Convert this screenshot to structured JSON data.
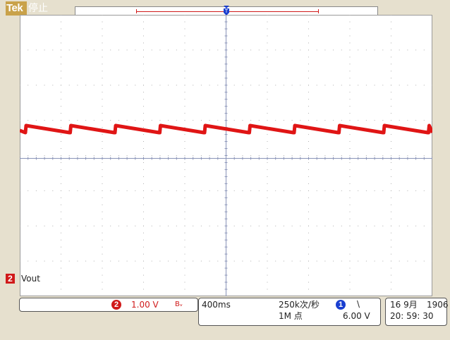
{
  "header": {
    "brand": "Tek",
    "acquisition_state": "停止"
  },
  "channel2": {
    "marker": "2",
    "label": "Vout",
    "scale": "1.00 V",
    "coupling_symbol": "Bᵥ",
    "color": "#d01a1a"
  },
  "timebase": {
    "scale": "400ms",
    "sample_rate": "250k次/秒",
    "record_length": "1M 点"
  },
  "trigger": {
    "source": "1",
    "slope_symbol": "\\",
    "level": "6.00 V",
    "color": "#1a3fd0"
  },
  "datetime": {
    "date": "16 9月",
    "year": "1906",
    "time": "20: 59: 30"
  },
  "icons": {
    "trigger_position": "trigger-position-marker-icon",
    "trigger_slope": "falling-edge-icon"
  }
}
